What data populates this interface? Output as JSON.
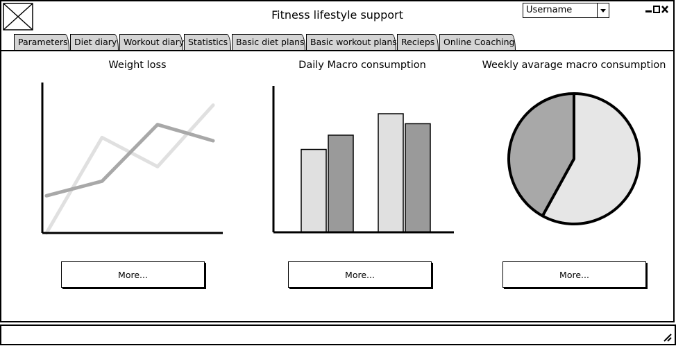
{
  "window": {
    "title": "Fitness lifestyle support"
  },
  "user": {
    "selected": "Username"
  },
  "tabs": [
    {
      "label": "Parameters"
    },
    {
      "label": "Diet diary"
    },
    {
      "label": "Workout diary"
    },
    {
      "label": "Statistics"
    },
    {
      "label": "Basic diet plans"
    },
    {
      "label": "Basic workout plans"
    },
    {
      "label": "Recieps"
    },
    {
      "label": "Online Coaching"
    }
  ],
  "panels": {
    "weight": {
      "title": "Weight loss",
      "more_label": "More..."
    },
    "daily": {
      "title": "Daily Macro consumption",
      "more_label": "More..."
    },
    "weekly": {
      "title": "Weekly avarage macro consumption",
      "more_label": "More..."
    }
  },
  "chart_data": [
    {
      "type": "line",
      "title": "Weight loss",
      "x": [
        0,
        1,
        2,
        3
      ],
      "series": [
        {
          "values": [
            0,
            5.9,
            4.1,
            7.9
          ],
          "color": "#e0e0e0"
        },
        {
          "values": [
            2.3,
            3.2,
            6.7,
            5.7
          ],
          "color": "#a8a8a8"
        }
      ],
      "ylim": [
        0,
        9
      ]
    },
    {
      "type": "bar",
      "title": "Daily Macro consumption",
      "categories": [
        "",
        ""
      ],
      "series": [
        {
          "values": [
            5.8,
            8.3
          ],
          "color": "#e0e0e0"
        },
        {
          "values": [
            6.8,
            7.6
          ],
          "color": "#9a9a9a"
        }
      ],
      "ylim": [
        0,
        10
      ]
    },
    {
      "type": "pie",
      "title": "Weekly avarage macro consumption",
      "slices": [
        {
          "value": 58,
          "color": "#e6e6e6"
        },
        {
          "value": 42,
          "color": "#a8a8a8"
        }
      ]
    }
  ]
}
